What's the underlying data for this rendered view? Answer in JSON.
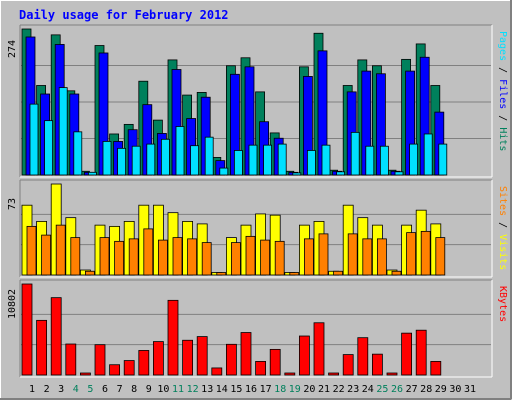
{
  "chart_data": {
    "type": "bar",
    "title": "Daily usage for February 2012",
    "x": [
      "1",
      "2",
      "3",
      "4",
      "5",
      "6",
      "7",
      "8",
      "9",
      "10",
      "11",
      "12",
      "13",
      "14",
      "15",
      "16",
      "17",
      "18",
      "19",
      "20",
      "21",
      "22",
      "23",
      "24",
      "25",
      "26",
      "27",
      "28",
      "29",
      "30",
      "31"
    ],
    "weekend_days": [
      "4",
      "5",
      "11",
      "12",
      "18",
      "19",
      "25",
      "26"
    ],
    "colors": {
      "hits": "#00805c",
      "files": "#0000ff",
      "pages": "#00e0ff",
      "visits": "#ffff00",
      "sites": "#ff8000",
      "kbytes": "#ff0000",
      "weekday_label": "#000000",
      "weekend_label": "#00805c",
      "background": "#c0c0c0",
      "gridline": "#808080"
    },
    "panels": [
      {
        "id": "hits-files-pages",
        "ymax_label": "274",
        "ymax": 274,
        "side_labels": [
          {
            "text": "Pages",
            "color": "#00e0ff"
          },
          {
            "text": " / ",
            "color": "#000000"
          },
          {
            "text": "Files",
            "color": "#0000ff"
          },
          {
            "text": " / ",
            "color": "#000000"
          },
          {
            "text": "Hits",
            "color": "#00805c"
          }
        ],
        "series": [
          {
            "key": "hits",
            "values": [
              274,
              168,
              263,
              158,
              7,
              243,
              77,
              95,
              176,
              103,
              216,
              150,
              155,
              33,
              205,
              220,
              156,
              79,
              7,
              203,
              266,
              9,
              168,
              216,
              205,
              9,
              217,
              246,
              168,
              0,
              0
            ]
          },
          {
            "key": "files",
            "values": [
              259,
              152,
              245,
              152,
              5,
              229,
              63,
              85,
              132,
              78,
              198,
              106,
              146,
              27,
              189,
              203,
              100,
              69,
              5,
              185,
              233,
              7,
              156,
              195,
              190,
              7,
              195,
              221,
              118,
              0,
              0
            ]
          },
          {
            "key": "pages",
            "values": [
              133,
              102,
              164,
              81,
              5,
              63,
              50,
              54,
              58,
              67,
              91,
              55,
              71,
              13,
              46,
              56,
              56,
              58,
              4,
              46,
              56,
              6,
              80,
              54,
              54,
              6,
              58,
              77,
              58,
              0,
              0
            ]
          }
        ]
      },
      {
        "id": "visits-sites",
        "ymax_label": "73",
        "ymax": 73,
        "side_labels": [
          {
            "text": "Sites",
            "color": "#ff8000"
          },
          {
            "text": " / ",
            "color": "#000000"
          },
          {
            "text": "Visits",
            "color": "#ffff00"
          }
        ],
        "series": [
          {
            "key": "visits",
            "values": [
              56,
              43,
              73,
              46,
              4,
              40,
              39,
              43,
              56,
              56,
              50,
              43,
              41,
              2,
              30,
              40,
              49,
              48,
              2,
              40,
              43,
              3,
              56,
              46,
              40,
              4,
              40,
              52,
              41,
              0,
              0
            ]
          },
          {
            "key": "sites",
            "values": [
              39,
              32,
              40,
              30,
              3,
              30,
              27,
              29,
              37,
              28,
              30,
              29,
              26,
              2,
              26,
              31,
              28,
              27,
              2,
              29,
              33,
              3,
              33,
              29,
              29,
              3,
              34,
              35,
              30,
              0,
              0
            ]
          }
        ]
      },
      {
        "id": "kbytes",
        "ymax_label": "10802",
        "ymax": 10802,
        "side_labels": [
          {
            "text": "KBytes",
            "color": "#ff0000"
          }
        ],
        "series": [
          {
            "key": "kbytes",
            "values": [
              10802,
              6487,
              9182,
              3678,
              140,
              3598,
              1220,
              1716,
              2913,
              3967,
              8864,
              4124,
              4559,
              838,
              3644,
              5042,
              1612,
              3041,
              74,
              4627,
              6201,
              136,
              2424,
              4430,
              2475,
              136,
              4968,
              5317,
              1612,
              0,
              0
            ]
          }
        ]
      }
    ]
  }
}
